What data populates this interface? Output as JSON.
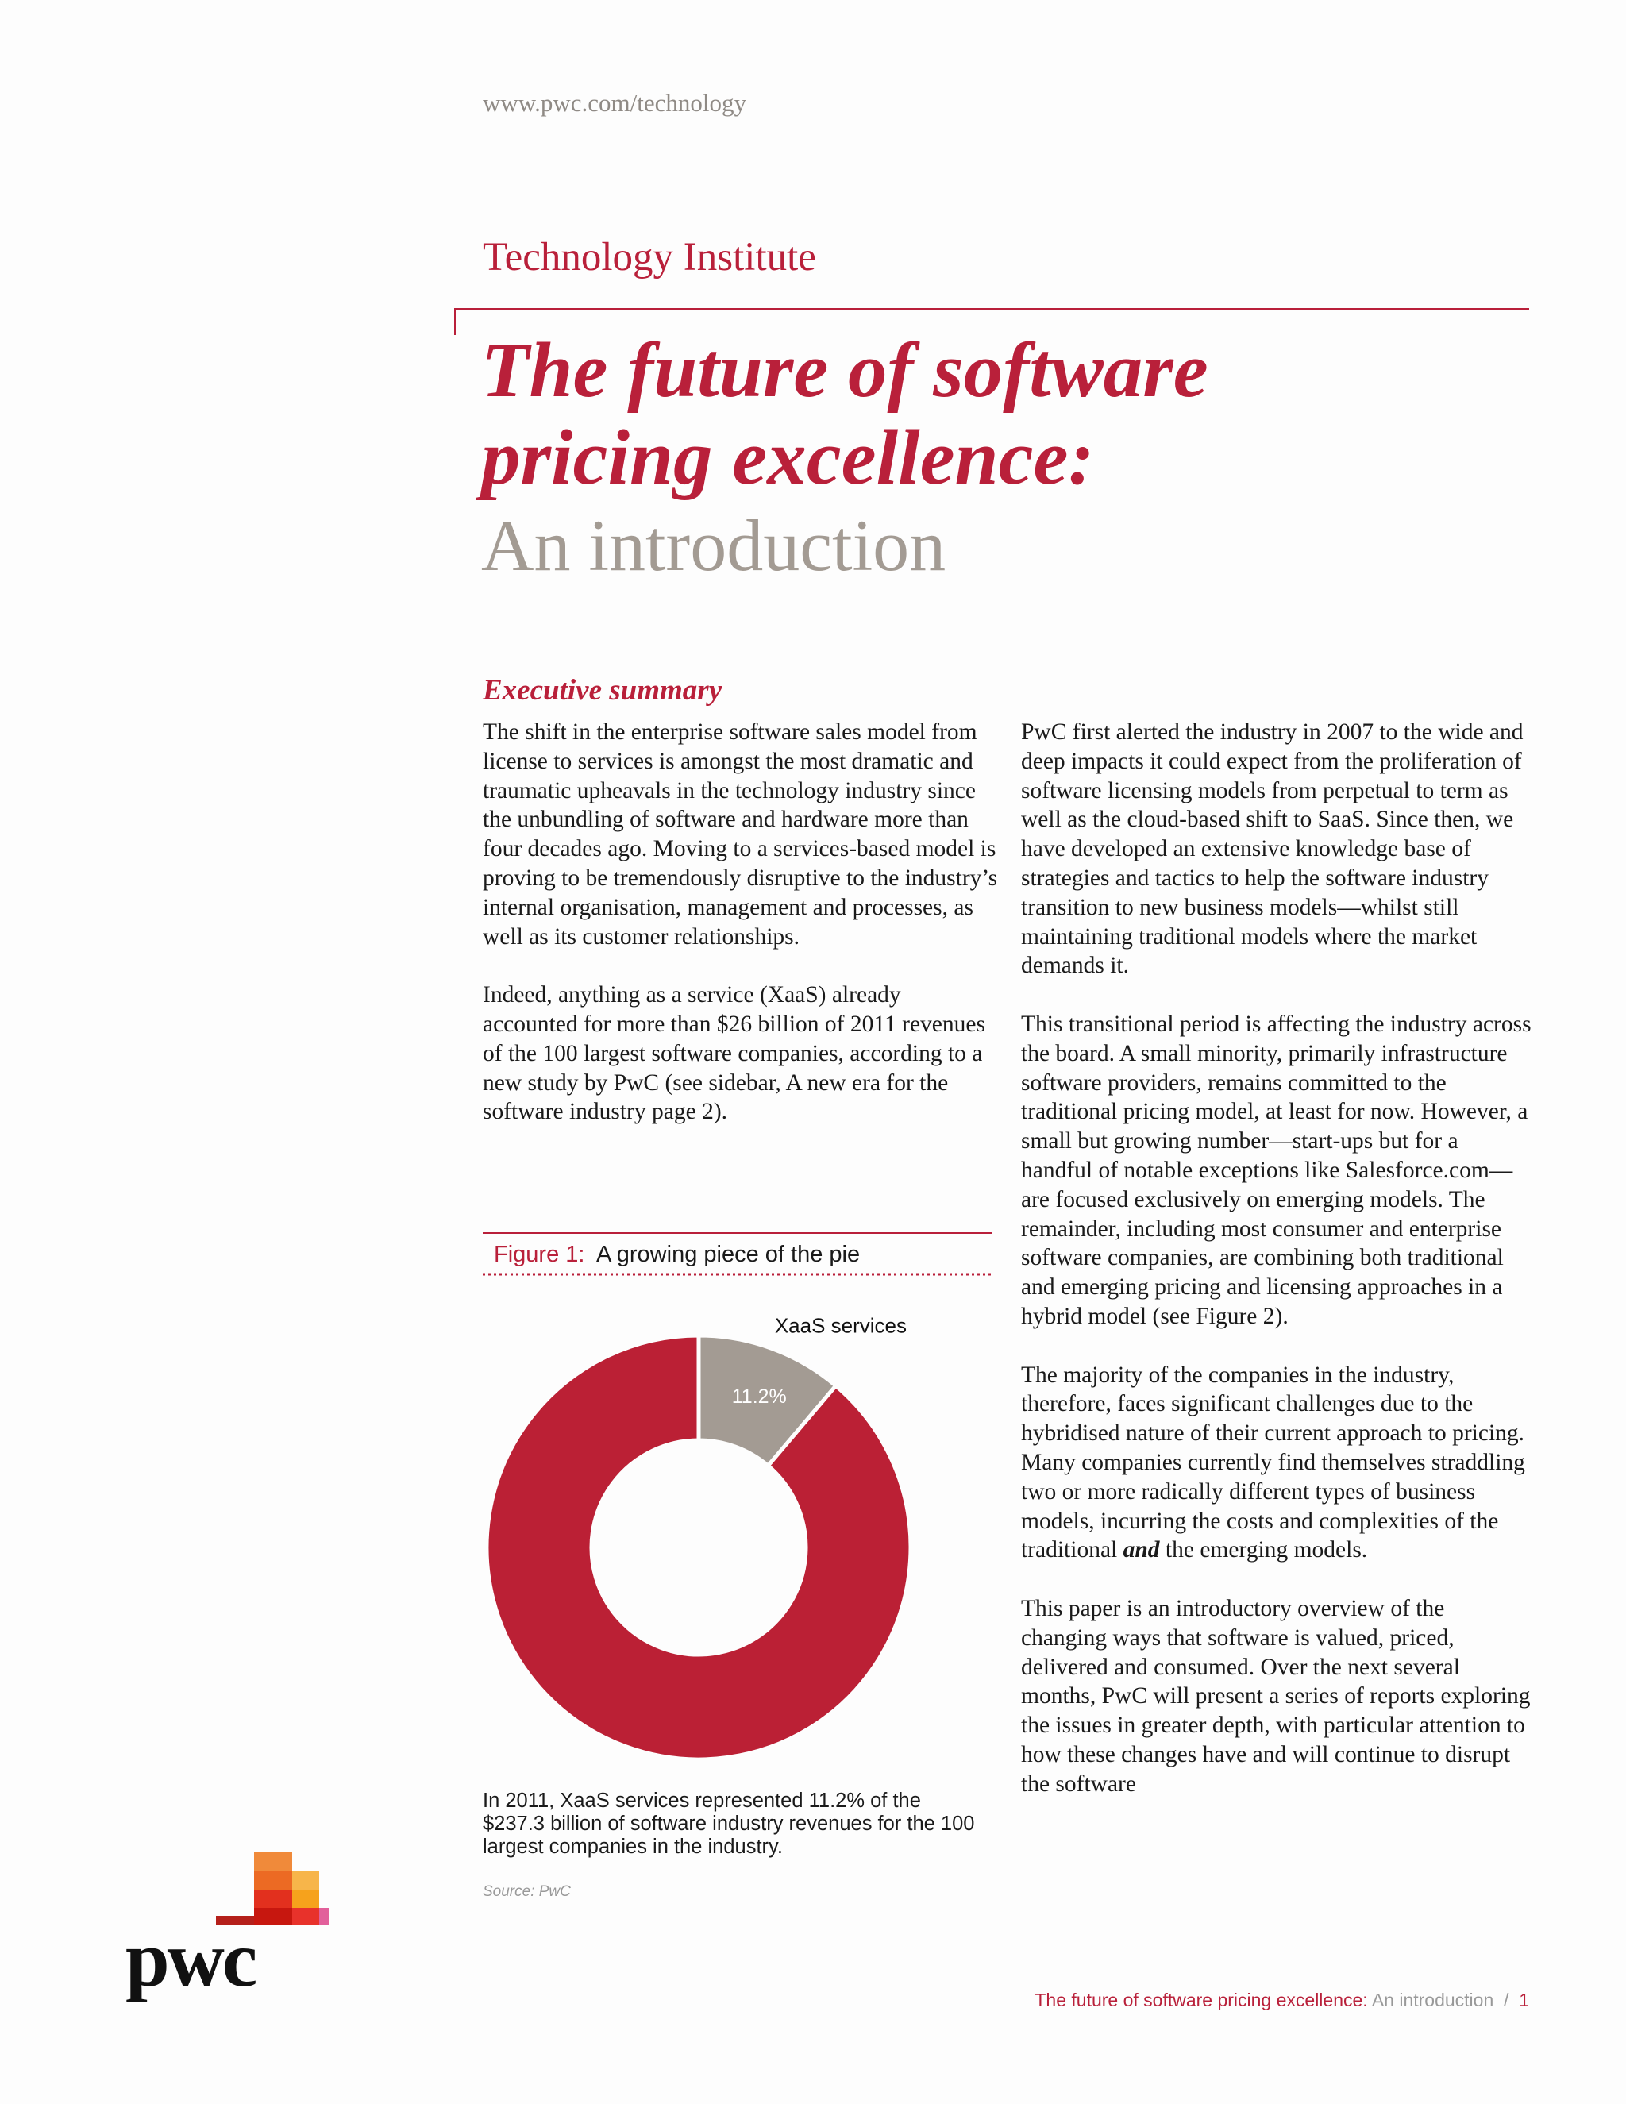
{
  "header": {
    "url": "www.pwc.com/technology",
    "institute": "Technology Institute"
  },
  "title": {
    "line1": "The future of software",
    "line2": "pricing excellence:",
    "subtitle": "An introduction"
  },
  "section_heading": "Executive summary",
  "left_column": {
    "paragraphs": [
      "The shift in the enterprise software sales model from license to services is amongst the most dramatic and traumatic upheavals in the technology industry since the unbundling of software and hardware more than four decades ago. Moving to a services-based model is proving to be tremendously disruptive to the industry’s internal organisation, management and processes, as well as its customer relationships.",
      "Indeed, anything as a service (XaaS) already accounted for more than $26 billion of 2011 revenues of the 100 largest software companies, according to a new study by PwC (see sidebar, A new era for the software industry page 2)."
    ]
  },
  "right_column": {
    "paragraphs": [
      "PwC first alerted the industry in 2007 to the wide and deep impacts it could expect from the proliferation of software licensing models from perpetual to term as well as the cloud-based shift to SaaS. Since then, we have developed an extensive knowledge base of strategies and tactics to help the software industry transition to new business models—whilst still maintaining traditional models where the market demands it.",
      "This transitional period is affecting the industry across the board. A small minority, primarily infrastructure software providers, remains committed to the traditional pricing model, at least for now. However, a small but growing number—start-ups but for a handful of notable exceptions like Salesforce.com—are focused exclusively on emerging models. The remainder, including most consumer and enterprise software companies, are combining both traditional and emerging pricing and licensing approaches in a hybrid model (see Figure 2).",
      {
        "text_before": "The majority of the companies in the industry, therefore, faces significant challenges due to the hybridised nature of their current approach to pricing. Many companies currently find themselves straddling two or more radically different types of business models, incurring the costs and complexities of the traditional",
        "emphasis": "and",
        "text_after": "the emerging models."
      },
      "This paper is an introductory overview of the changing ways that software is valued, priced, delivered and consumed. Over the next several months, PwC will present a series of reports exploring the issues in greater depth, with particular attention to how these changes have and will continue to disrupt the software"
    ]
  },
  "figure": {
    "label": "Figure 1:",
    "title": "A growing piece of the pie",
    "caption": "In 2011, XaaS services represented 11.2% of the $237.3 billion of software industry revenues for the 100 largest companies in the industry.",
    "source": "Source: PwC"
  },
  "chart_data": {
    "type": "donut",
    "categories": [
      "XaaS services",
      null
    ],
    "values": [
      11.2,
      88.8
    ],
    "value_labels": [
      "11.2%",
      null
    ],
    "colors": [
      "#a39b93",
      "#bb2035"
    ]
  },
  "footer": {
    "title": "The future of software pricing excellence:",
    "subtitle": "An introduction",
    "separator": "/",
    "page": "1"
  },
  "logo": "pwc"
}
